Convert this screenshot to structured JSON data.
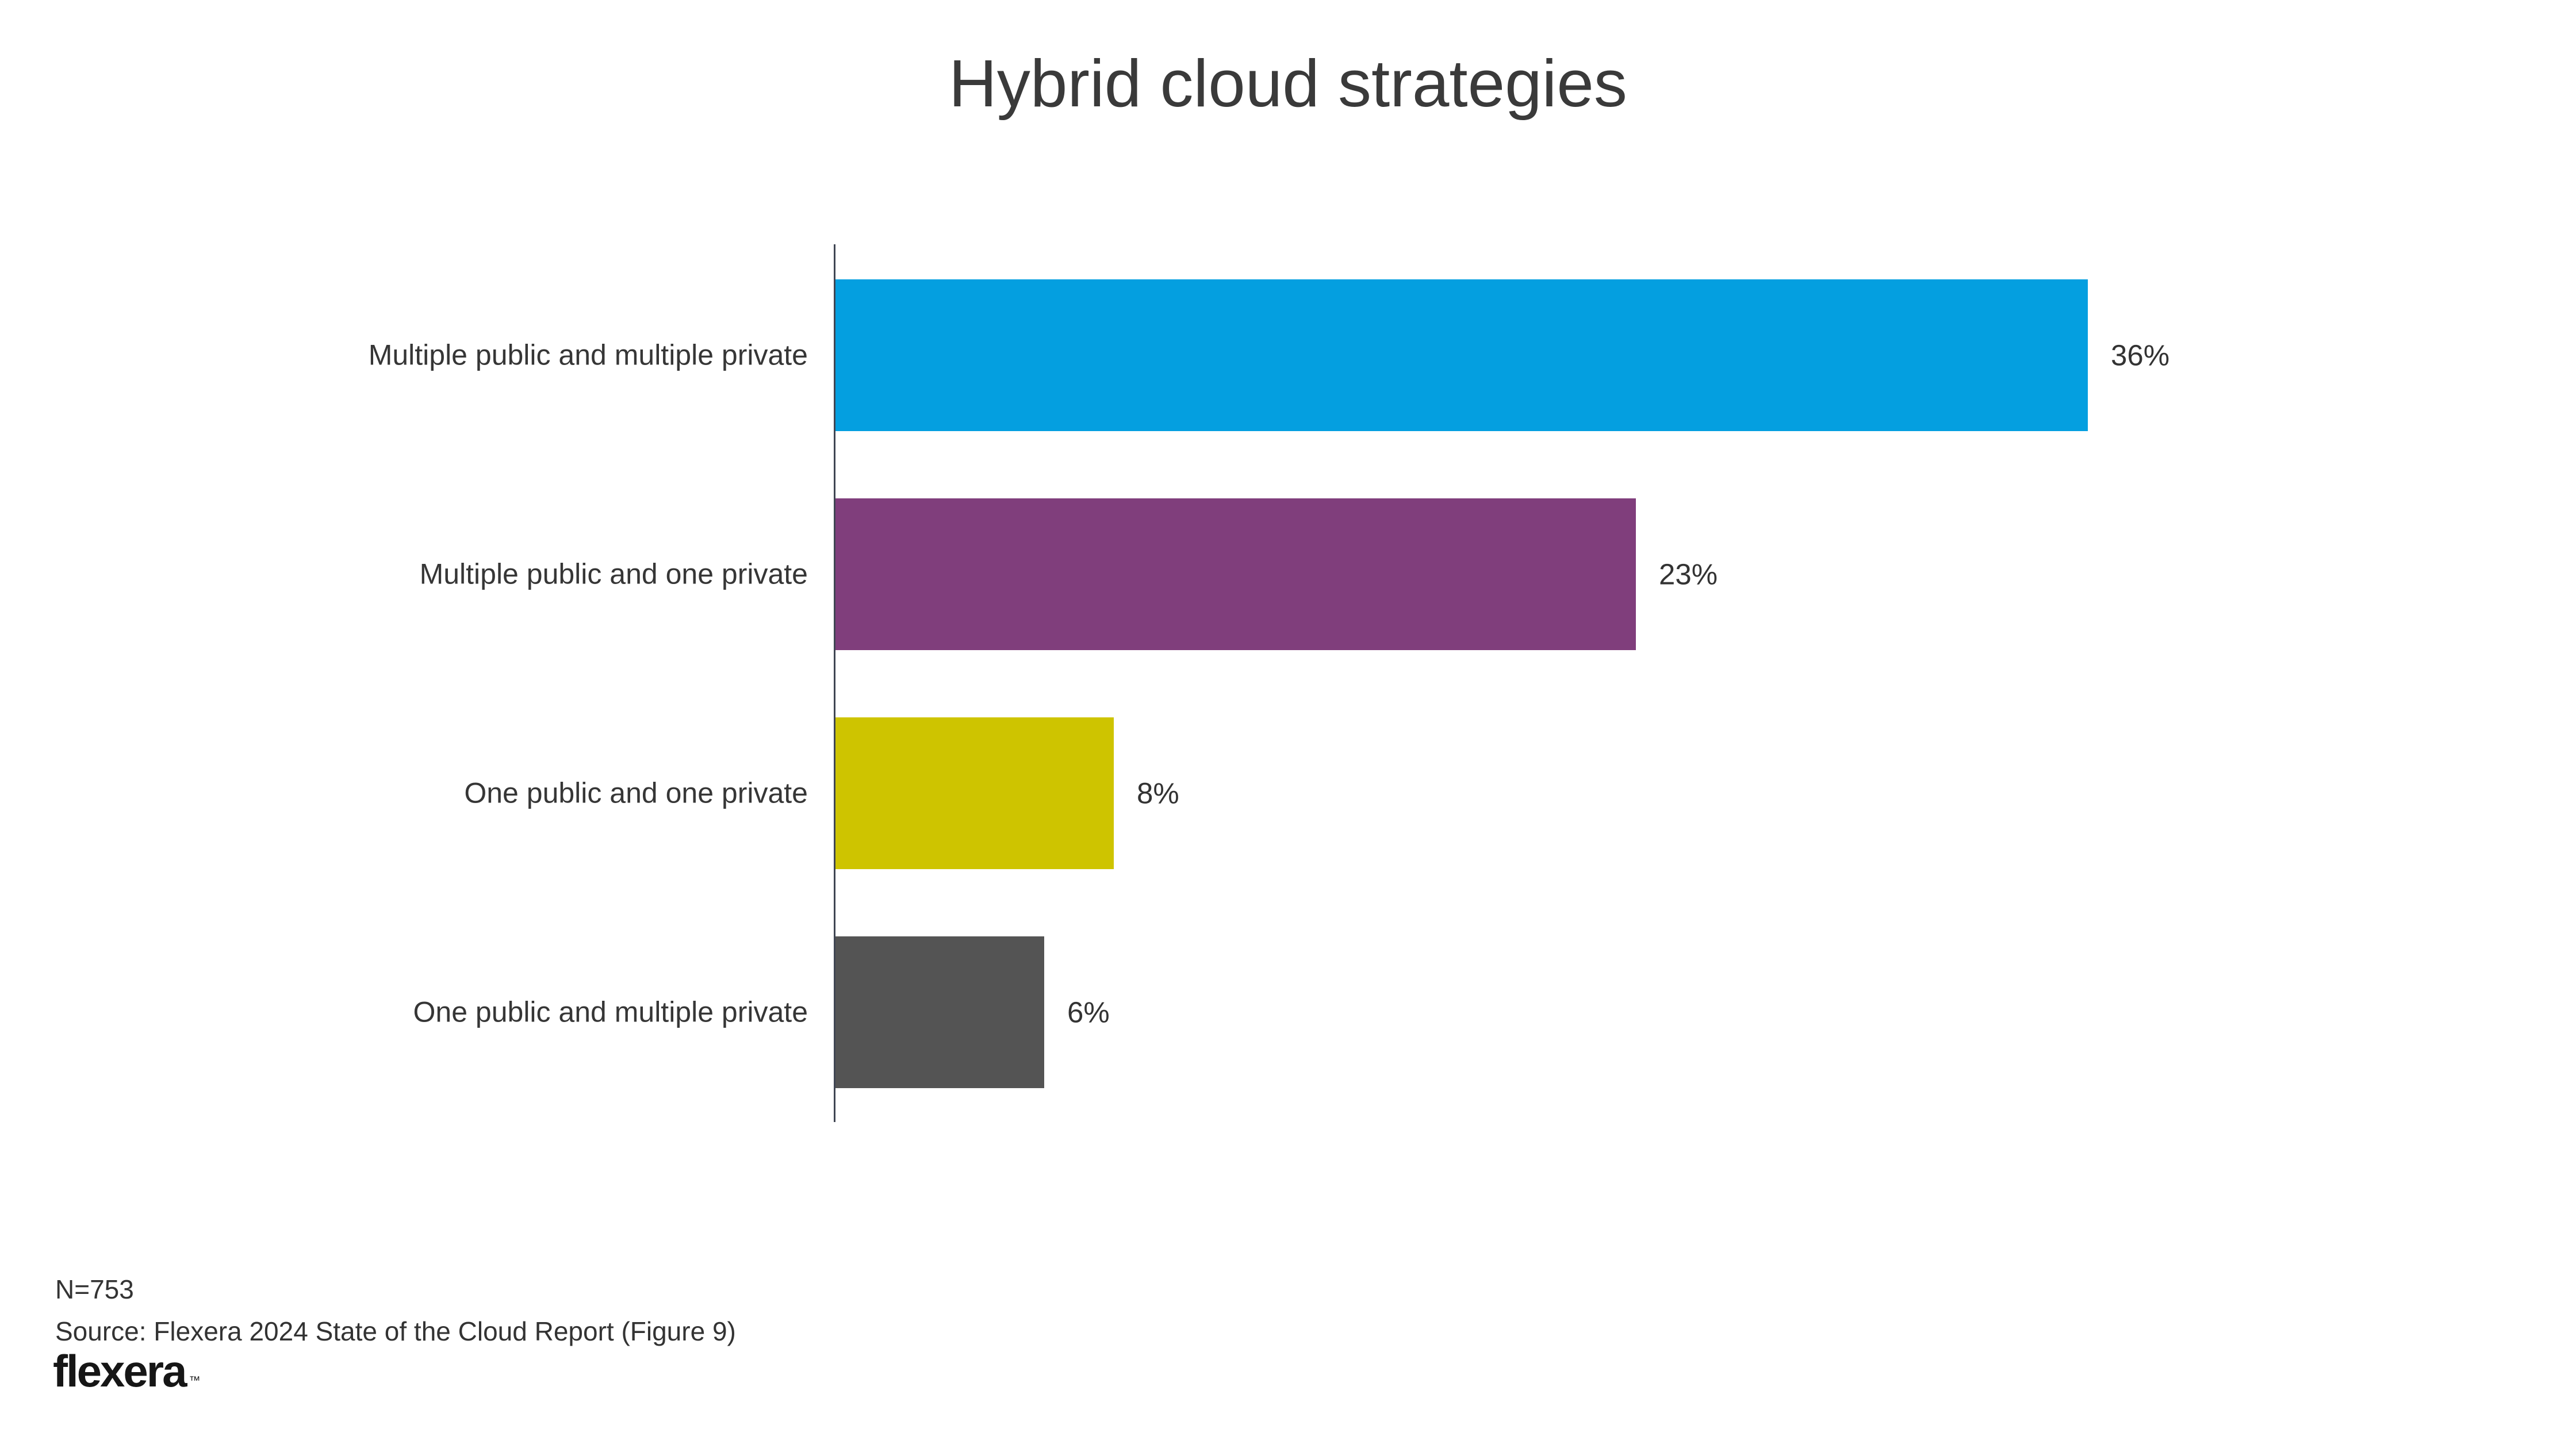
{
  "page": {
    "background_color": "#ffffff",
    "text_color": "#363636"
  },
  "header": {
    "title": "Hybrid cloud strategies"
  },
  "footer": {
    "sample_size_note": "N=753",
    "source_note": "Source: Flexera 2024 State of the Cloud Report (Figure 9)",
    "brand_logo_text": "flexera",
    "brand_logo_trademark": "™"
  },
  "chart_data": {
    "type": "bar",
    "orientation": "horizontal",
    "title": "Hybrid cloud strategies",
    "categories": [
      "Multiple public and multiple private",
      "Multiple public and one private",
      "One public and one private",
      "One public and multiple private"
    ],
    "values": [
      36,
      23,
      8,
      6
    ],
    "value_labels": [
      "36%",
      "23%",
      "8%",
      "6%"
    ],
    "bar_colors": [
      "#049FE0",
      "#803E7C",
      "#CEC400",
      "#545454"
    ],
    "axis_color": "#404653",
    "unit": "%",
    "xlim": [
      0,
      40
    ],
    "grid": false,
    "legend": "none",
    "value_label_position": "outside-end",
    "category_label_position": "left"
  }
}
